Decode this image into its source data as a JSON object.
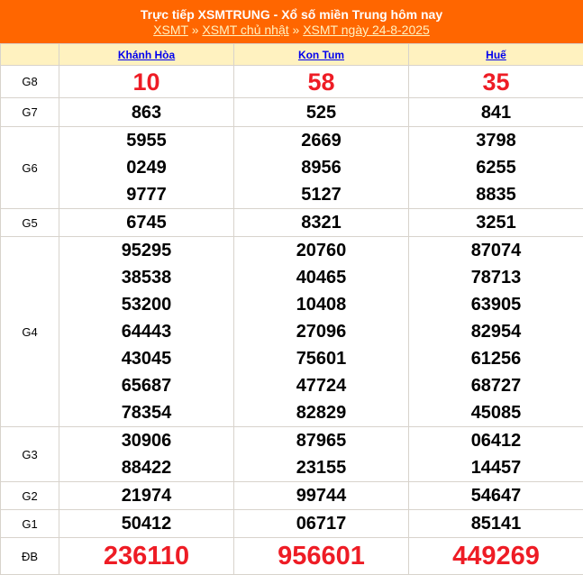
{
  "header": {
    "title": "Trực tiếp XSMTRUNG - Xổ số miền Trung hôm nay",
    "breadcrumb": [
      "XSMT",
      "XSMT chủ nhật",
      "XSMT ngày 24-8-2025"
    ],
    "separator": "»"
  },
  "columns": [
    "Khánh Hòa",
    "Kon Tum",
    "Huế"
  ],
  "rows": [
    {
      "label": "G8",
      "values": [
        [
          "10"
        ],
        [
          "58"
        ],
        [
          "35"
        ]
      ],
      "style": "r"
    },
    {
      "label": "G7",
      "values": [
        [
          "863"
        ],
        [
          "525"
        ],
        [
          "841"
        ]
      ]
    },
    {
      "label": "G6",
      "values": [
        [
          "5955",
          "0249",
          "9777"
        ],
        [
          "2669",
          "8956",
          "5127"
        ],
        [
          "3798",
          "6255",
          "8835"
        ]
      ]
    },
    {
      "label": "G5",
      "values": [
        [
          "6745"
        ],
        [
          "8321"
        ],
        [
          "3251"
        ]
      ]
    },
    {
      "label": "G4",
      "values": [
        [
          "95295",
          "38538",
          "53200",
          "64443",
          "43045",
          "65687",
          "78354"
        ],
        [
          "20760",
          "40465",
          "10408",
          "27096",
          "75601",
          "47724",
          "82829"
        ],
        [
          "87074",
          "78713",
          "63905",
          "82954",
          "61256",
          "68727",
          "45085"
        ]
      ]
    },
    {
      "label": "G3",
      "values": [
        [
          "30906",
          "88422"
        ],
        [
          "87965",
          "23155"
        ],
        [
          "06412",
          "14457"
        ]
      ]
    },
    {
      "label": "G2",
      "values": [
        [
          "21974"
        ],
        [
          "99744"
        ],
        [
          "54647"
        ]
      ]
    },
    {
      "label": "G1",
      "values": [
        [
          "50412"
        ],
        [
          "06717"
        ],
        [
          "85141"
        ]
      ]
    },
    {
      "label": "ĐB",
      "values": [
        [
          "236110"
        ],
        [
          "956601"
        ],
        [
          "449269"
        ]
      ],
      "style": "db"
    }
  ],
  "colors": {
    "header": "#ff6600",
    "column_header": "#fff2c0",
    "highlight": "#ee1c25"
  }
}
